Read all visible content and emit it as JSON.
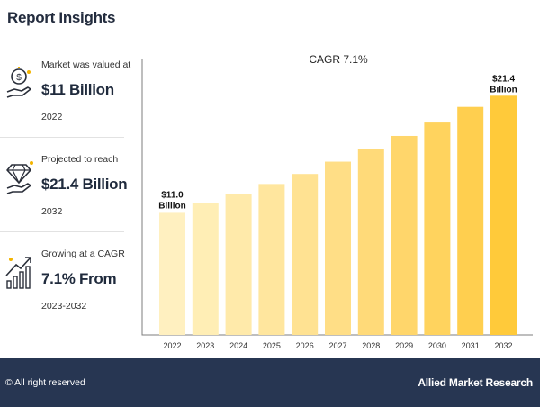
{
  "header": {
    "title": "Report Insights"
  },
  "insights": [
    {
      "label": "Market was valued at",
      "value": "$11 Billion",
      "sub": "2022",
      "icon": "money-hand-icon"
    },
    {
      "label": "Projected to reach",
      "value": "$21.4 Billion",
      "sub": "2032",
      "icon": "diamond-hand-icon"
    },
    {
      "label": "Growing at a CAGR",
      "value": "7.1% From",
      "sub": "2023-2032",
      "icon": "growth-chart-icon"
    }
  ],
  "chart_data": {
    "type": "bar",
    "title": "CAGR 7.1%",
    "categories": [
      "2022",
      "2023",
      "2024",
      "2025",
      "2026",
      "2027",
      "2028",
      "2029",
      "2030",
      "2031",
      "2032"
    ],
    "values": [
      11.0,
      11.8,
      12.6,
      13.5,
      14.4,
      15.5,
      16.6,
      17.8,
      19.0,
      20.4,
      21.4
    ],
    "ylim": [
      0,
      24
    ],
    "xlabel": "",
    "ylabel": "",
    "annotations": [
      {
        "index": 0,
        "lines": [
          "$11.0",
          "Billion"
        ]
      },
      {
        "index": 10,
        "lines": [
          "$21.4",
          "Billion"
        ]
      }
    ],
    "colors": [
      "#fff0c0",
      "#ffeeb5",
      "#ffeaaa",
      "#ffe69e",
      "#ffe292",
      "#ffde86",
      "#ffda79",
      "#ffd66b",
      "#ffd35e",
      "#ffcf4f",
      "#ffca3a"
    ]
  },
  "footer": {
    "copyright": "© All right reserved",
    "brand": "Allied Market Research"
  }
}
